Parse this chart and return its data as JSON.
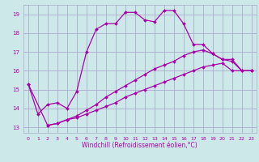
{
  "bg_color": "#cce8e8",
  "grid_color": "#aaaacc",
  "line_color": "#aa00aa",
  "marker_color": "#aa00aa",
  "xlabel": "Windchill (Refroidissement éolien,°C)",
  "xlim": [
    -0.5,
    23.5
  ],
  "ylim": [
    12.7,
    19.5
  ],
  "yticks": [
    13,
    14,
    15,
    16,
    17,
    18,
    19
  ],
  "xticks": [
    0,
    1,
    2,
    3,
    4,
    5,
    6,
    7,
    8,
    9,
    10,
    11,
    12,
    13,
    14,
    15,
    16,
    17,
    18,
    19,
    20,
    21,
    22,
    23
  ],
  "series1_x": [
    0,
    1,
    2,
    3,
    4,
    5,
    6,
    7,
    8,
    9,
    10,
    11,
    12,
    13,
    14,
    15,
    16,
    17,
    18,
    19,
    20,
    21,
    22,
    23
  ],
  "series1_y": [
    15.3,
    13.7,
    14.2,
    14.3,
    14.0,
    14.9,
    17.0,
    18.2,
    18.5,
    18.5,
    19.1,
    19.1,
    18.7,
    18.6,
    19.2,
    19.2,
    18.5,
    17.4,
    17.4,
    16.9,
    16.6,
    16.6,
    16.0,
    16.0
  ],
  "series2_x": [
    2,
    3,
    4,
    5,
    6,
    7,
    8,
    9,
    10,
    11,
    12,
    13,
    14,
    15,
    16,
    17,
    18,
    19,
    20,
    21,
    22,
    23
  ],
  "series2_y": [
    13.1,
    13.2,
    13.4,
    13.5,
    13.7,
    13.9,
    14.1,
    14.3,
    14.6,
    14.8,
    15.0,
    15.2,
    15.4,
    15.6,
    15.8,
    16.0,
    16.2,
    16.3,
    16.4,
    16.0,
    16.0,
    16.0
  ],
  "series3_x": [
    0,
    2,
    3,
    4,
    5,
    6,
    7,
    8,
    9,
    10,
    11,
    12,
    13,
    14,
    15,
    16,
    17,
    18,
    19,
    20,
    21,
    22,
    23
  ],
  "series3_y": [
    15.3,
    13.1,
    13.2,
    13.4,
    13.6,
    13.9,
    14.2,
    14.6,
    14.9,
    15.2,
    15.5,
    15.8,
    16.1,
    16.3,
    16.5,
    16.8,
    17.0,
    17.1,
    16.9,
    16.6,
    16.5,
    16.0,
    16.0
  ]
}
